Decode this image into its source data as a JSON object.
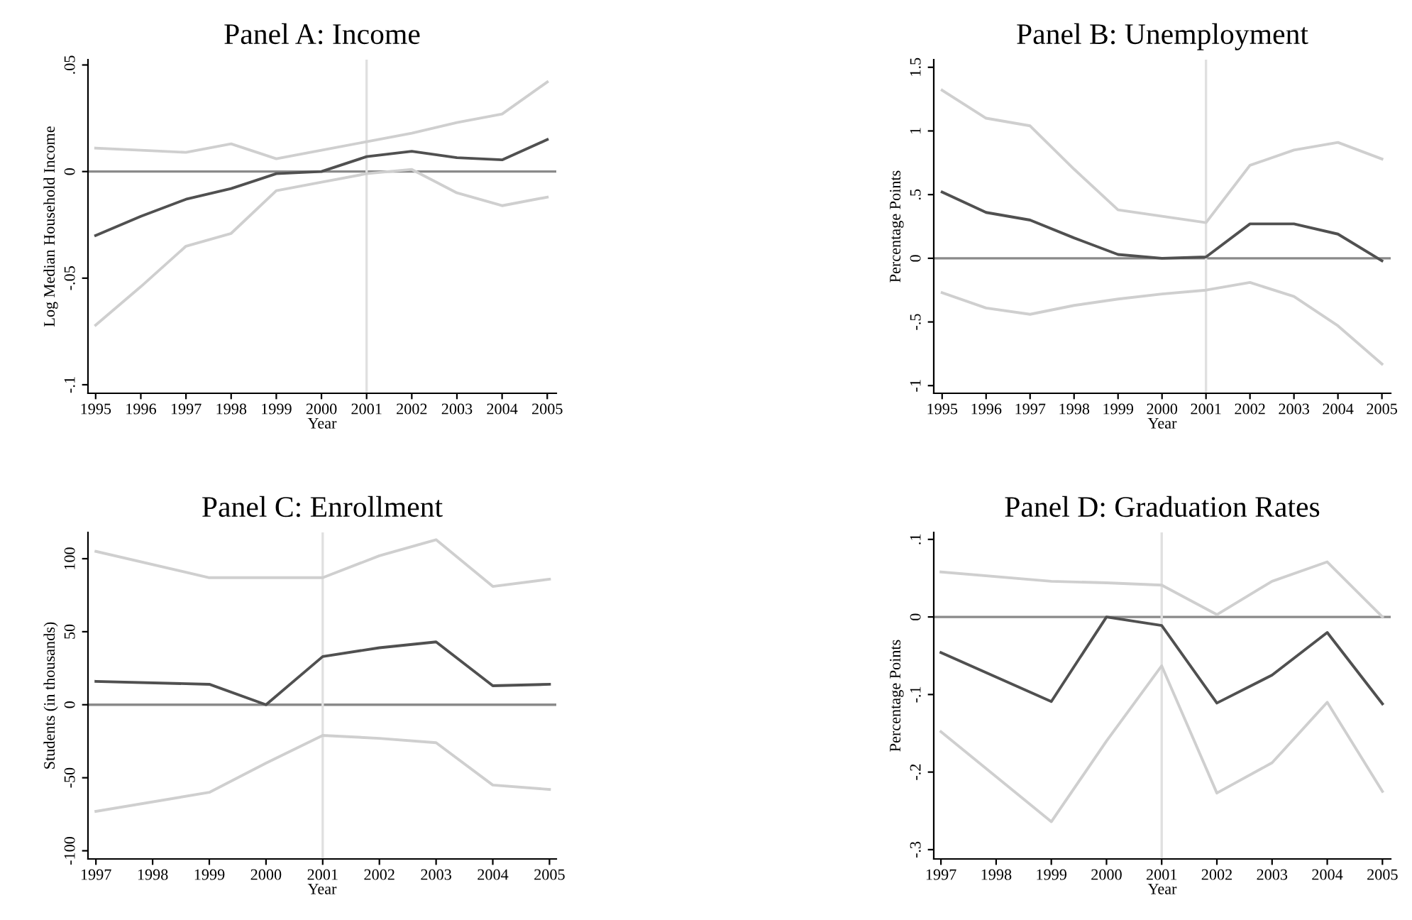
{
  "chart_data": [
    {
      "type": "line",
      "title": "Panel A: Income",
      "xlabel": "Year",
      "ylabel": "Log Median Household Income",
      "x": [
        1995,
        1996,
        1997,
        1998,
        1999,
        2000,
        2001,
        2002,
        2003,
        2004,
        2005
      ],
      "series": [
        {
          "color": "#cfcfcf",
          "values": [
            0.011,
            0.01,
            0.009,
            0.013,
            0.006,
            0.01,
            0.014,
            0.018,
            0.023,
            0.027,
            0.042
          ]
        },
        {
          "color": "#cfcfcf",
          "values": [
            -0.072,
            -0.054,
            -0.035,
            -0.029,
            -0.009,
            -0.005,
            -0.001,
            0.001,
            -0.01,
            -0.016,
            -0.012
          ]
        },
        {
          "color": "#505050",
          "values": [
            -0.03,
            -0.021,
            -0.013,
            -0.008,
            -0.001,
            0.0,
            0.007,
            0.0095,
            0.0065,
            0.0055,
            0.015
          ]
        }
      ],
      "xlim": [
        1994.83,
        2005.2
      ],
      "ylim": [
        -0.104,
        0.0525
      ],
      "xticks": [
        1995,
        1996,
        1997,
        1998,
        1999,
        2000,
        2001,
        2002,
        2003,
        2004,
        2005
      ],
      "yticks": [
        {
          "value": -0.1,
          "label": "-.1"
        },
        {
          "value": -0.05,
          "label": "-.05"
        },
        0,
        {
          "value": 0.05,
          "label": ".05"
        }
      ],
      "ref_lines": [
        {
          "axis": "y",
          "value": 0,
          "color": "#8a8a8a"
        },
        {
          "axis": "x",
          "value": 2001,
          "color": "#e0e0e0"
        }
      ]
    },
    {
      "type": "line",
      "title": "Panel B: Unemployment",
      "xlabel": "Year",
      "ylabel": "Percentage Points",
      "x": [
        1995,
        1996,
        1997,
        1998,
        1999,
        2000,
        2001,
        2002,
        2003,
        2004,
        2005
      ],
      "series": [
        {
          "color": "#cfcfcf",
          "values": [
            1.32,
            1.1,
            1.04,
            0.7,
            0.38,
            0.33,
            0.28,
            0.73,
            0.85,
            0.91,
            0.78
          ]
        },
        {
          "color": "#cfcfcf",
          "values": [
            -0.27,
            -0.39,
            -0.44,
            -0.37,
            -0.32,
            -0.28,
            -0.25,
            -0.19,
            -0.3,
            -0.53,
            -0.83
          ]
        },
        {
          "color": "#505050",
          "values": [
            0.52,
            0.36,
            0.3,
            0.16,
            0.03,
            0.0,
            0.01,
            0.27,
            0.27,
            0.19,
            -0.02
          ]
        }
      ],
      "xlim": [
        1994.81,
        2005.2
      ],
      "ylim": [
        -1.06,
        1.56
      ],
      "xticks": [
        1995,
        1996,
        1997,
        1998,
        1999,
        2000,
        2001,
        2002,
        2003,
        2004,
        2005
      ],
      "yticks": [
        -1,
        {
          "value": -0.5,
          "label": "-.5"
        },
        0,
        {
          "value": 0.5,
          "label": ".5"
        },
        1,
        1.5
      ],
      "ref_lines": [
        {
          "axis": "y",
          "value": 0,
          "color": "#8a8a8a"
        },
        {
          "axis": "x",
          "value": 2001,
          "color": "#e0e0e0"
        }
      ]
    },
    {
      "type": "line",
      "title": "Panel C: Enrollment",
      "xlabel": "Year",
      "ylabel": "Students (in thousands)",
      "x": [
        1997,
        1999,
        2000,
        2001,
        2002,
        2003,
        2004,
        2005
      ],
      "series": [
        {
          "color": "#cfcfcf",
          "values": [
            105,
            87,
            87,
            87,
            102,
            113,
            81,
            86
          ]
        },
        {
          "color": "#cfcfcf",
          "values": [
            -73,
            -60,
            -40,
            -21,
            -23,
            -26,
            -55,
            -58
          ]
        },
        {
          "color": "#505050",
          "values": [
            16,
            14,
            0,
            33,
            39,
            43,
            13,
            14
          ]
        }
      ],
      "xlim": [
        1996.86,
        2005.12
      ],
      "ylim": [
        -105.6,
        118
      ],
      "xticks": [
        1997,
        1998,
        1999,
        2000,
        2001,
        2002,
        2003,
        2004,
        2005
      ],
      "yticks": [
        -100,
        -50,
        0,
        50,
        100
      ],
      "ref_lines": [
        {
          "axis": "y",
          "value": 0,
          "color": "#8a8a8a"
        },
        {
          "axis": "x",
          "value": 2001,
          "color": "#e0e0e0"
        }
      ]
    },
    {
      "type": "line",
      "title": "Panel D: Graduation Rates",
      "xlabel": "Year",
      "ylabel": "Percentage Points",
      "x": [
        1997,
        1999,
        2000,
        2001,
        2002,
        2003,
        2004,
        2005
      ],
      "series": [
        {
          "color": "#cfcfcf",
          "values": [
            0.058,
            0.046,
            0.044,
            0.041,
            0.003,
            0.046,
            0.071,
            0.0
          ]
        },
        {
          "color": "#cfcfcf",
          "values": [
            -0.148,
            -0.264,
            -0.16,
            -0.063,
            -0.227,
            -0.188,
            -0.11,
            -0.225
          ]
        },
        {
          "color": "#505050",
          "values": [
            -0.046,
            -0.109,
            0.0,
            -0.011,
            -0.111,
            -0.075,
            -0.02,
            -0.112
          ]
        }
      ],
      "xlim": [
        1996.87,
        2005.15
      ],
      "ylim": [
        -0.312,
        0.109
      ],
      "xticks": [
        1997,
        1998,
        1999,
        2000,
        2001,
        2002,
        2003,
        2004,
        2005
      ],
      "yticks": [
        {
          "value": -0.3,
          "label": "-.3"
        },
        {
          "value": -0.2,
          "label": "-.2"
        },
        {
          "value": -0.1,
          "label": "-.1"
        },
        0,
        {
          "value": 0.1,
          "label": ".1"
        }
      ],
      "ref_lines": [
        {
          "axis": "y",
          "value": 0,
          "color": "#8a8a8a"
        },
        {
          "axis": "x",
          "value": 2001,
          "color": "#e0e0e0"
        }
      ]
    }
  ]
}
